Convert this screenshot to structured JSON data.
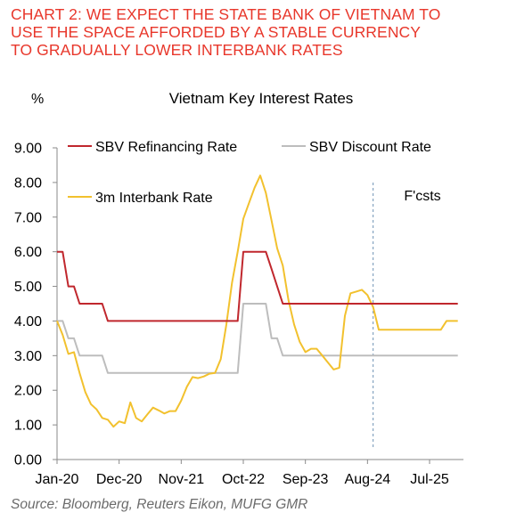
{
  "heading": {
    "line1": "CHART 2: WE EXPECT THE STATE BANK OF VIETNAM TO",
    "line2": "USE THE SPACE AFFORDED BY A STABLE CURRENCY",
    "line3": "TO GRADUALLY LOWER INTERBANK RATES"
  },
  "source": "Source: Bloomberg, Reuters Eikon, MUFG GMR",
  "chart_data": {
    "type": "line",
    "title": "Vietnam Key Interest Rates",
    "ylabel": "%",
    "ylim": [
      0,
      9
    ],
    "yticks": [
      "0.00",
      "1.00",
      "2.00",
      "3.00",
      "4.00",
      "5.00",
      "6.00",
      "7.00",
      "8.00",
      "9.00"
    ],
    "xlim": [
      "2020-01",
      "2026-01"
    ],
    "xticks": [
      "Jan-20",
      "Dec-20",
      "Nov-21",
      "Oct-22",
      "Sep-23",
      "Aug-24",
      "Jul-25"
    ],
    "xtick_dates": [
      "2020-01",
      "2020-12",
      "2021-11",
      "2022-10",
      "2023-09",
      "2024-08",
      "2025-07"
    ],
    "forecast_label": "F'csts",
    "forecast_start": "2024-09",
    "legend_placement": "top",
    "grid": false,
    "series": [
      {
        "name": "SBV Refinancing Rate",
        "color": "#c0272d",
        "points": [
          [
            "2020-01",
            6.0
          ],
          [
            "2020-02",
            6.0
          ],
          [
            "2020-03",
            5.0
          ],
          [
            "2020-04",
            5.0
          ],
          [
            "2020-05",
            4.5
          ],
          [
            "2020-09",
            4.5
          ],
          [
            "2020-10",
            4.0
          ],
          [
            "2022-09",
            4.0
          ],
          [
            "2022-10",
            6.0
          ],
          [
            "2022-12",
            6.0
          ],
          [
            "2023-02",
            6.0
          ],
          [
            "2023-03",
            5.5
          ],
          [
            "2023-04",
            5.0
          ],
          [
            "2023-05",
            4.5
          ],
          [
            "2025-12",
            4.5
          ]
        ]
      },
      {
        "name": "SBV Discount Rate",
        "color": "#bdbdbd",
        "points": [
          [
            "2020-01",
            4.0
          ],
          [
            "2020-02",
            4.0
          ],
          [
            "2020-03",
            3.5
          ],
          [
            "2020-04",
            3.5
          ],
          [
            "2020-05",
            3.0
          ],
          [
            "2020-09",
            3.0
          ],
          [
            "2020-10",
            2.5
          ],
          [
            "2022-09",
            2.5
          ],
          [
            "2022-10",
            4.5
          ],
          [
            "2022-12",
            4.5
          ],
          [
            "2023-02",
            4.5
          ],
          [
            "2023-03",
            3.5
          ],
          [
            "2023-04",
            3.5
          ],
          [
            "2023-05",
            3.0
          ],
          [
            "2025-12",
            3.0
          ]
        ]
      },
      {
        "name": "3m Interbank Rate",
        "color": "#f2c12e",
        "points": [
          [
            "2020-01",
            4.0
          ],
          [
            "2020-02",
            3.6
          ],
          [
            "2020-03",
            3.05
          ],
          [
            "2020-04",
            3.1
          ],
          [
            "2020-05",
            2.5
          ],
          [
            "2020-06",
            1.95
          ],
          [
            "2020-07",
            1.6
          ],
          [
            "2020-08",
            1.45
          ],
          [
            "2020-09",
            1.2
          ],
          [
            "2020-10",
            1.15
          ],
          [
            "2020-11",
            0.95
          ],
          [
            "2020-12",
            1.1
          ],
          [
            "2021-01",
            1.05
          ],
          [
            "2021-02",
            1.65
          ],
          [
            "2021-03",
            1.2
          ],
          [
            "2021-04",
            1.1
          ],
          [
            "2021-05",
            1.3
          ],
          [
            "2021-06",
            1.5
          ],
          [
            "2021-07",
            1.42
          ],
          [
            "2021-08",
            1.33
          ],
          [
            "2021-09",
            1.4
          ],
          [
            "2021-10",
            1.4
          ],
          [
            "2021-11",
            1.7
          ],
          [
            "2021-12",
            2.1
          ],
          [
            "2022-01",
            2.38
          ],
          [
            "2022-02",
            2.35
          ],
          [
            "2022-03",
            2.4
          ],
          [
            "2022-04",
            2.48
          ],
          [
            "2022-05",
            2.5
          ],
          [
            "2022-06",
            2.9
          ],
          [
            "2022-07",
            3.9
          ],
          [
            "2022-08",
            5.1
          ],
          [
            "2022-09",
            6.0
          ],
          [
            "2022-10",
            6.95
          ],
          [
            "2022-11",
            7.4
          ],
          [
            "2022-12",
            7.85
          ],
          [
            "2023-01",
            8.2
          ],
          [
            "2023-02",
            7.7
          ],
          [
            "2023-03",
            6.9
          ],
          [
            "2023-04",
            6.1
          ],
          [
            "2023-05",
            5.6
          ],
          [
            "2023-06",
            4.6
          ],
          [
            "2023-07",
            3.9
          ],
          [
            "2023-08",
            3.4
          ],
          [
            "2023-09",
            3.1
          ],
          [
            "2023-10",
            3.2
          ],
          [
            "2023-11",
            3.2
          ],
          [
            "2023-12",
            3.0
          ],
          [
            "2024-01",
            2.8
          ],
          [
            "2024-02",
            2.6
          ],
          [
            "2024-03",
            2.65
          ],
          [
            "2024-04",
            4.15
          ],
          [
            "2024-05",
            4.8
          ],
          [
            "2024-06",
            4.85
          ],
          [
            "2024-07",
            4.9
          ],
          [
            "2024-08",
            4.75
          ],
          [
            "2024-09",
            4.4
          ],
          [
            "2024-10",
            3.75
          ],
          [
            "2025-09",
            3.75
          ],
          [
            "2025-10",
            4.0
          ],
          [
            "2025-12",
            4.0
          ]
        ]
      }
    ]
  }
}
